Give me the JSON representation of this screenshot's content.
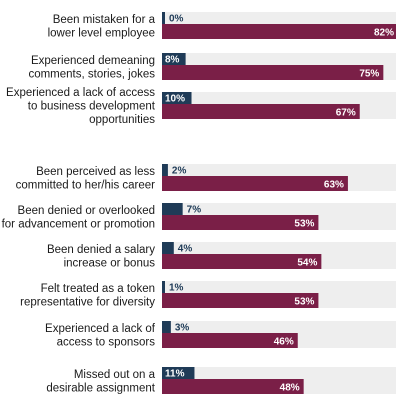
{
  "chart_data": {
    "type": "bar",
    "orientation": "horizontal",
    "xlim": [
      0,
      100
    ],
    "grid": false,
    "legend": "none",
    "colors": {
      "navy": "#1f3b57",
      "maroon": "#7a1f47",
      "track": "#eeeeee",
      "label_on_light": "#1f3b57",
      "label_on_dark": "#ffffff"
    },
    "categories": [
      [
        "Been mistaken for a",
        "lower level employee"
      ],
      [
        "Experienced demeaning",
        "comments, stories, jokes"
      ],
      [
        "Experienced a lack of access",
        "to business development",
        "opportunities"
      ],
      [
        "Been perceived as less",
        "committed to her/his career"
      ],
      [
        "Been denied or overlooked",
        "for advancement or promotion"
      ],
      [
        "Been denied a salary",
        "increase or bonus"
      ],
      [
        "Felt treated as a token",
        "representative for diversity"
      ],
      [
        "Experienced a lack of",
        "access to sponsors"
      ],
      [
        "Missed out on a",
        "desirable assignment"
      ]
    ],
    "series": [
      {
        "color": "#1f3b57",
        "values": [
          0,
          8,
          10,
          2,
          7,
          4,
          1,
          3,
          11
        ],
        "labels": [
          "0%",
          "8%",
          "10%",
          "2%",
          "7%",
          "4%",
          "1%",
          "3%",
          "11%"
        ]
      },
      {
        "color": "#7a1f47",
        "values": [
          82,
          75,
          67,
          63,
          53,
          54,
          53,
          46,
          48
        ],
        "labels": [
          "82%",
          "75%",
          "67%",
          "63%",
          "53%",
          "54%",
          "53%",
          "46%",
          "48%"
        ]
      }
    ]
  }
}
